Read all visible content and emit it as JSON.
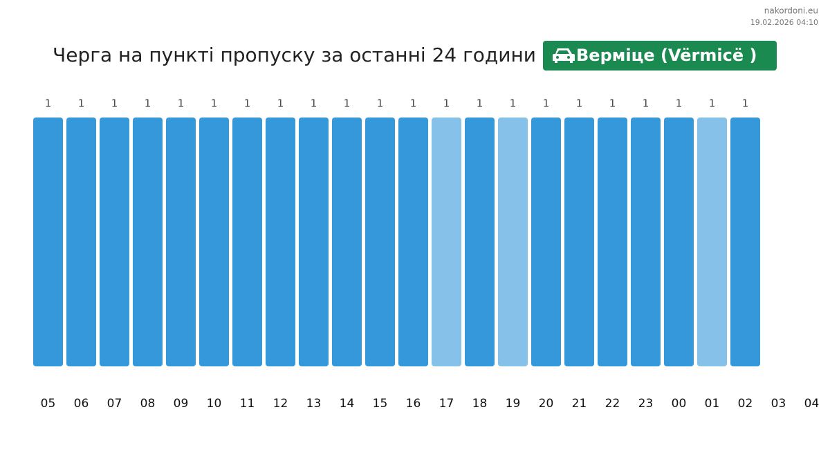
{
  "chart_data": {
    "type": "bar",
    "title": "Черга на пункті пропуску за останні 24 години",
    "badge": "Верміце (Vërmicë )",
    "source": "nakordoni.eu",
    "timestamp": "19.02.2026 04:10",
    "categories": [
      "05",
      "06",
      "07",
      "08",
      "09",
      "10",
      "11",
      "12",
      "13",
      "14",
      "15",
      "16",
      "17",
      "18",
      "19",
      "20",
      "21",
      "22",
      "23",
      "00",
      "01",
      "02",
      "03",
      "04"
    ],
    "values": [
      1,
      1,
      1,
      1,
      1,
      1,
      1,
      1,
      1,
      1,
      1,
      1,
      1,
      1,
      1,
      1,
      1,
      1,
      1,
      1,
      1,
      1,
      null,
      null
    ],
    "colors": [
      "#3498db",
      "#3498db",
      "#3498db",
      "#3498db",
      "#3498db",
      "#3498db",
      "#3498db",
      "#3498db",
      "#3498db",
      "#3498db",
      "#3498db",
      "#3498db",
      "#85c1e9",
      "#3498db",
      "#85c1e9",
      "#3498db",
      "#3498db",
      "#3498db",
      "#3498db",
      "#3498db",
      "#85c1e9",
      "#3498db",
      null,
      null
    ],
    "ylim": [
      0,
      1
    ]
  }
}
